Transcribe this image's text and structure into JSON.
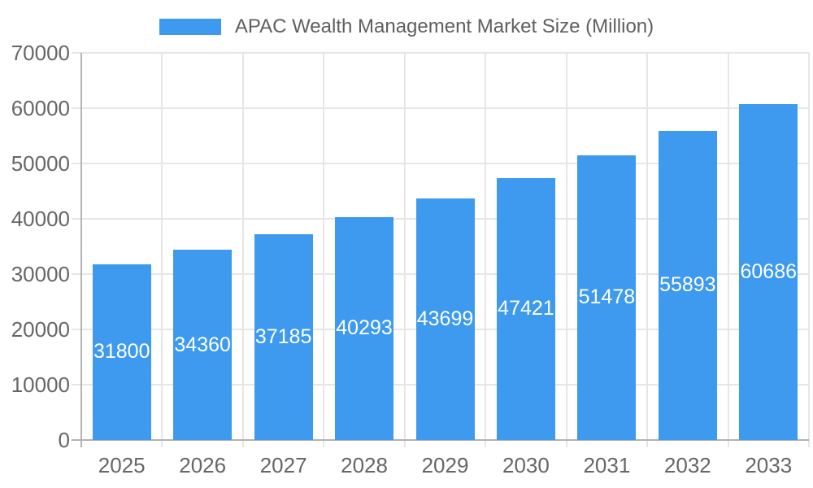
{
  "legend": {
    "label": "APAC Wealth Management Market Size (Million)"
  },
  "chart_data": {
    "type": "bar",
    "title": "APAC Wealth Management Market Size (Million)",
    "categories": [
      "2025",
      "2026",
      "2027",
      "2028",
      "2029",
      "2030",
      "2031",
      "2032",
      "2033"
    ],
    "values": [
      31800,
      34360,
      37185,
      40293,
      43699,
      47421,
      51478,
      55893,
      60686
    ],
    "series": [
      {
        "name": "APAC Wealth Management Market Size (Million)",
        "values": [
          31800,
          34360,
          37185,
          40293,
          43699,
          47421,
          51478,
          55893,
          60686
        ]
      }
    ],
    "xlabel": "",
    "ylabel": "",
    "ylim": [
      0,
      70000
    ],
    "ytick_step": 10000,
    "yticks": [
      "0",
      "10000",
      "20000",
      "30000",
      "40000",
      "50000",
      "60000",
      "70000"
    ],
    "grid": true,
    "legend_position": "top",
    "data_labels_shown": true,
    "data_label_position": "center"
  },
  "colors": {
    "bar": "#3d9aee",
    "grid": "#e6e6e6",
    "axis": "#b3b3b3",
    "tick_text": "#666666",
    "legend_text": "#5f5f5f",
    "value_label_text": "#ffffff",
    "background": "#ffffff"
  }
}
